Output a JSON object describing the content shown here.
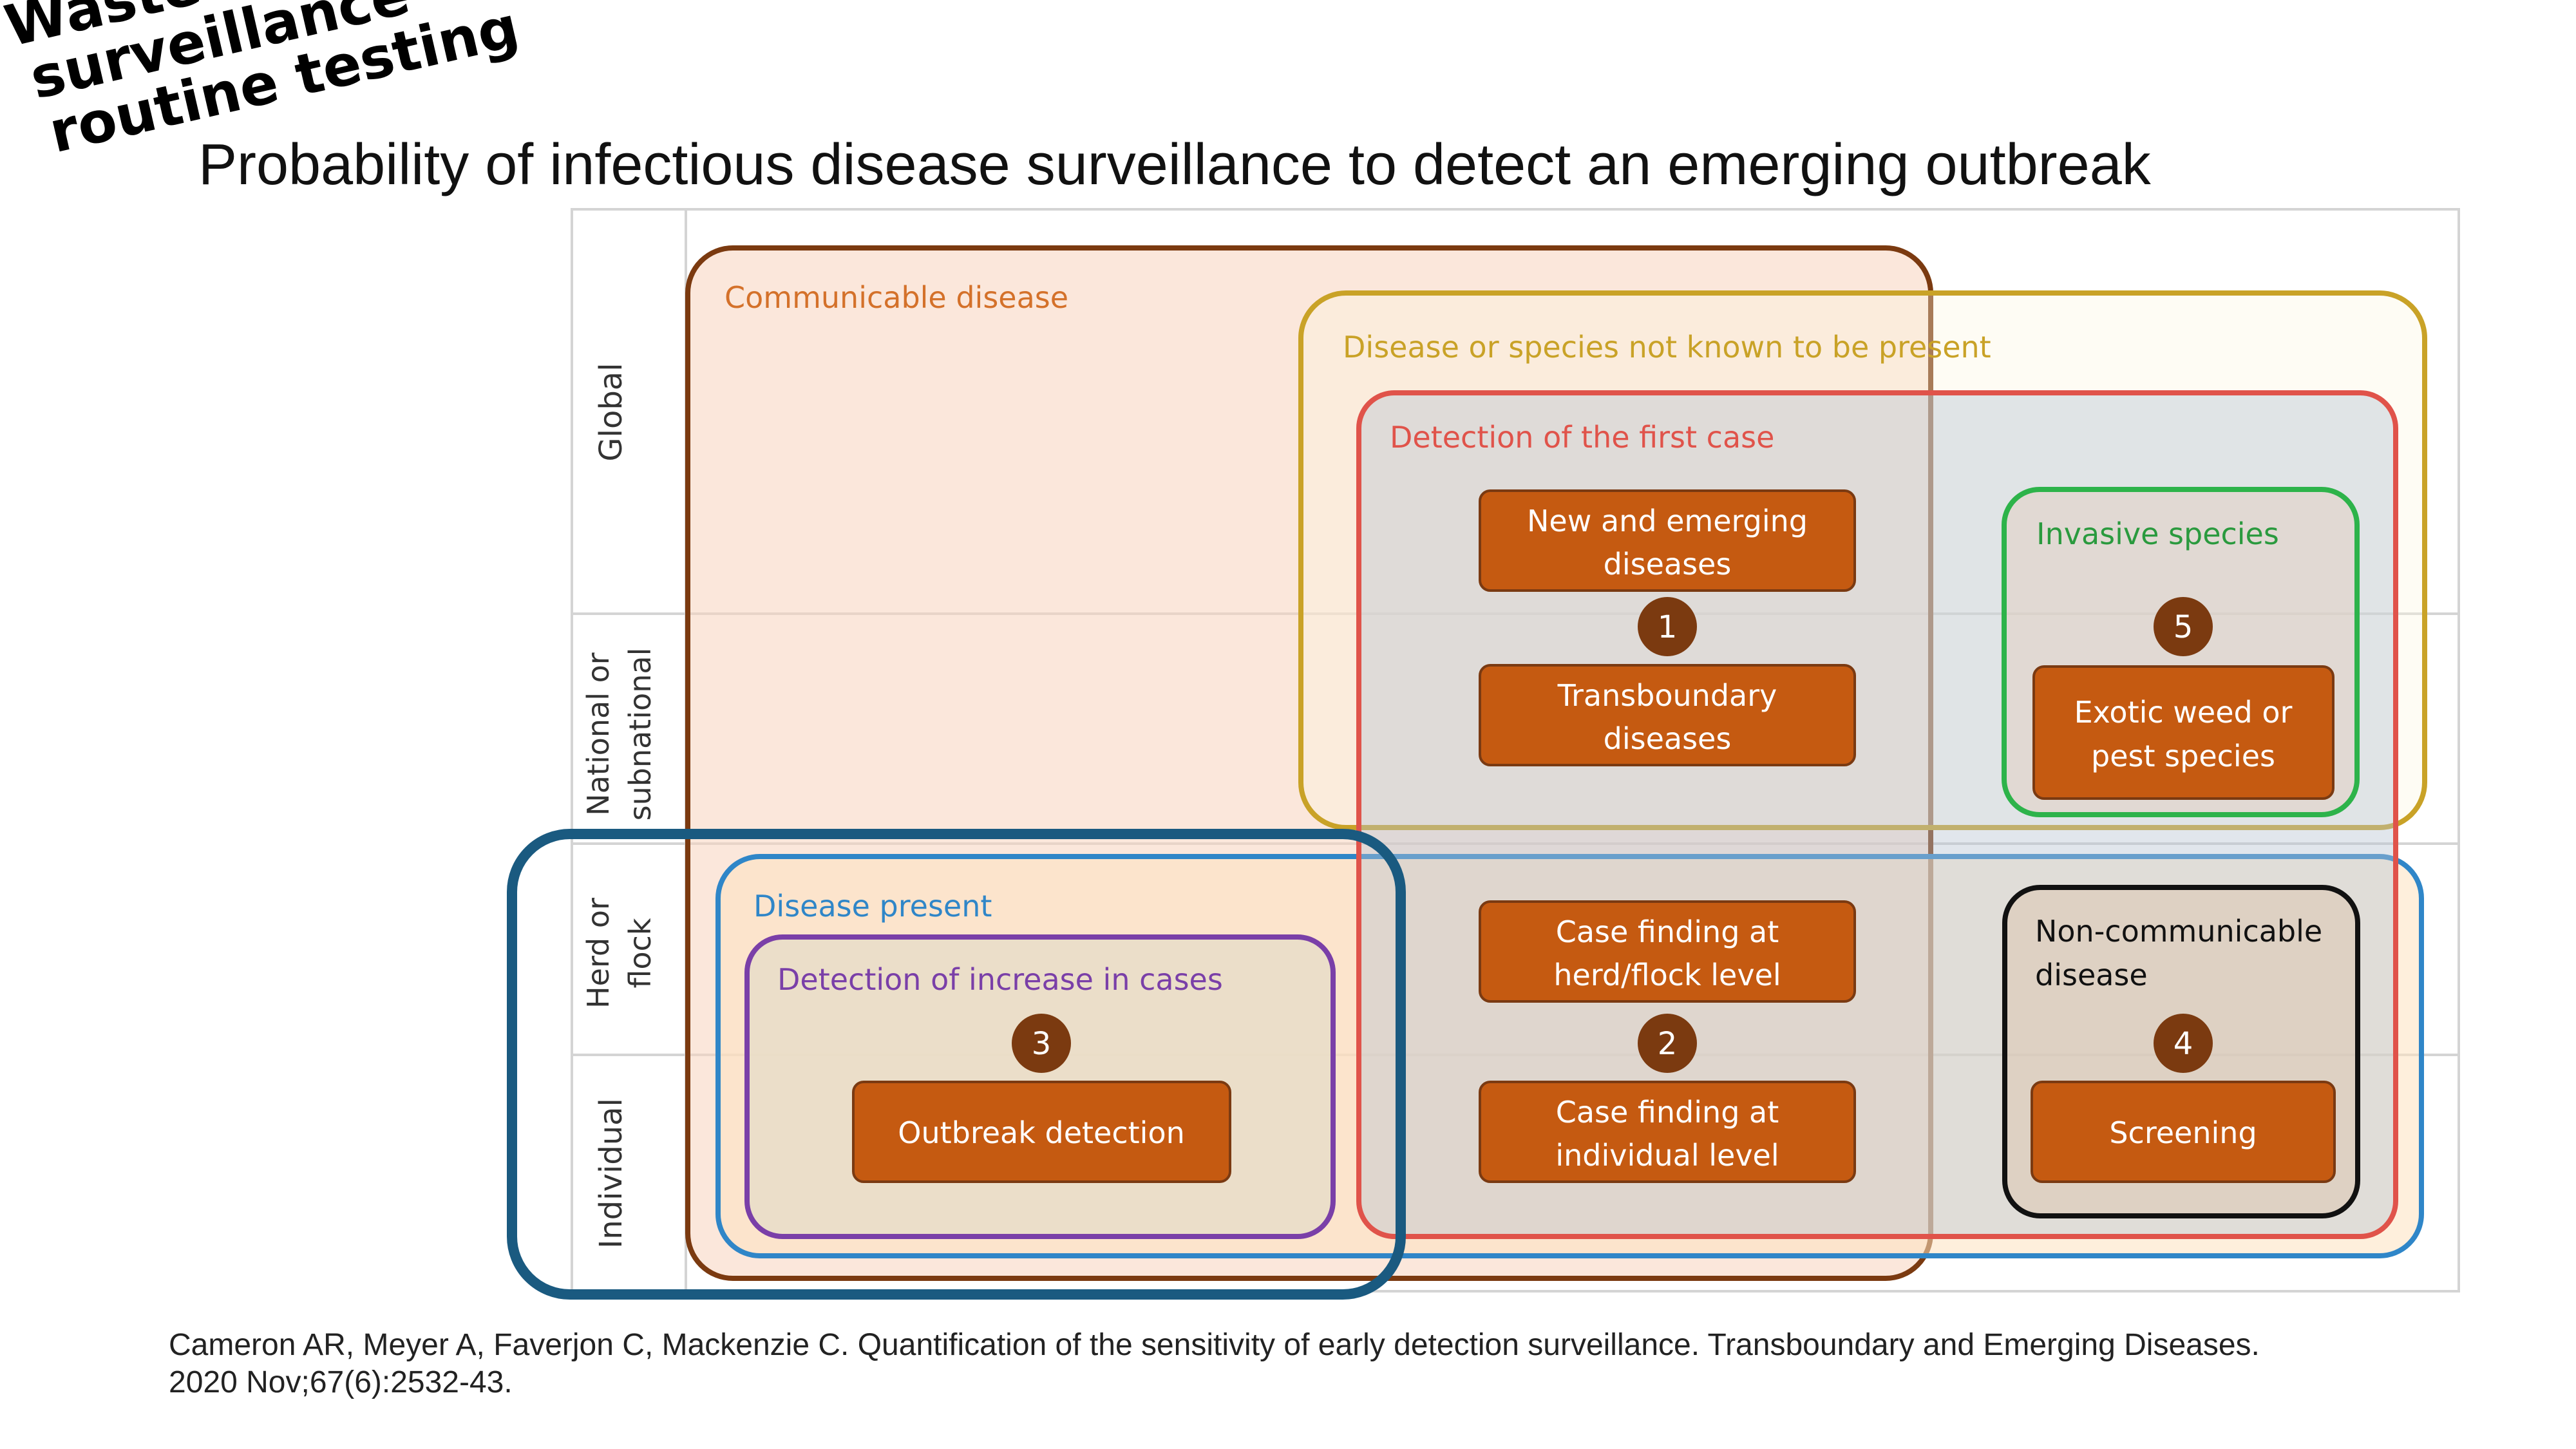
{
  "title": "Probability of infectious disease surveillance to detect an emerging outbreak",
  "citation": {
    "line1": "Cameron AR, Meyer A, Faverjon C, Mackenzie C. Quantification of the sensitivity of early detection surveillance. Transboundary and Emerging Diseases.",
    "line2": "2020 Nov;67(6):2532-43."
  },
  "annotation": {
    "line1": "Wastewater",
    "line2": "surveillance",
    "line3": "routine testing"
  },
  "rows": {
    "global": "Global",
    "national_line1": "National or",
    "national_line2": "subnational",
    "herd_line1": "Herd or",
    "herd_line2": "flock",
    "individual": "Individual"
  },
  "regions": {
    "communicable": "Communicable disease",
    "not_known": "Disease or species not known to be present",
    "first_case": "Detection of the first case",
    "invasive": "Invasive species",
    "disease_present": "Disease present",
    "increase": "Detection of increase in cases",
    "noncommunicable_line1": "Non-communicable",
    "noncommunicable_line2": "disease"
  },
  "boxes": {
    "new_emerging_line1": "New and emerging",
    "new_emerging_line2": "diseases",
    "transboundary_line1": "Transboundary",
    "transboundary_line2": "diseases",
    "exotic_line1": "Exotic weed or",
    "exotic_line2": "pest species",
    "herd_line1": "Case finding at",
    "herd_line2": "herd/flock level",
    "individual_line1": "Case finding at",
    "individual_line2": "individual level",
    "outbreak": "Outbreak detection",
    "screening": "Screening"
  },
  "badges": {
    "b1": "1",
    "b2": "2",
    "b3": "3",
    "b4": "4",
    "b5": "5"
  },
  "colors": {
    "communicable": "#7b3a10",
    "not_known": "#c9a227",
    "first_case": "#e0534a",
    "invasive": "#2db34a",
    "disease_present": "#2f86c8",
    "increase": "#7a3fa8",
    "noncommunicable": "#111111",
    "box_fill": "#c55a11",
    "badge_fill": "#7b3a10",
    "wastewater": "#1a5a80"
  }
}
